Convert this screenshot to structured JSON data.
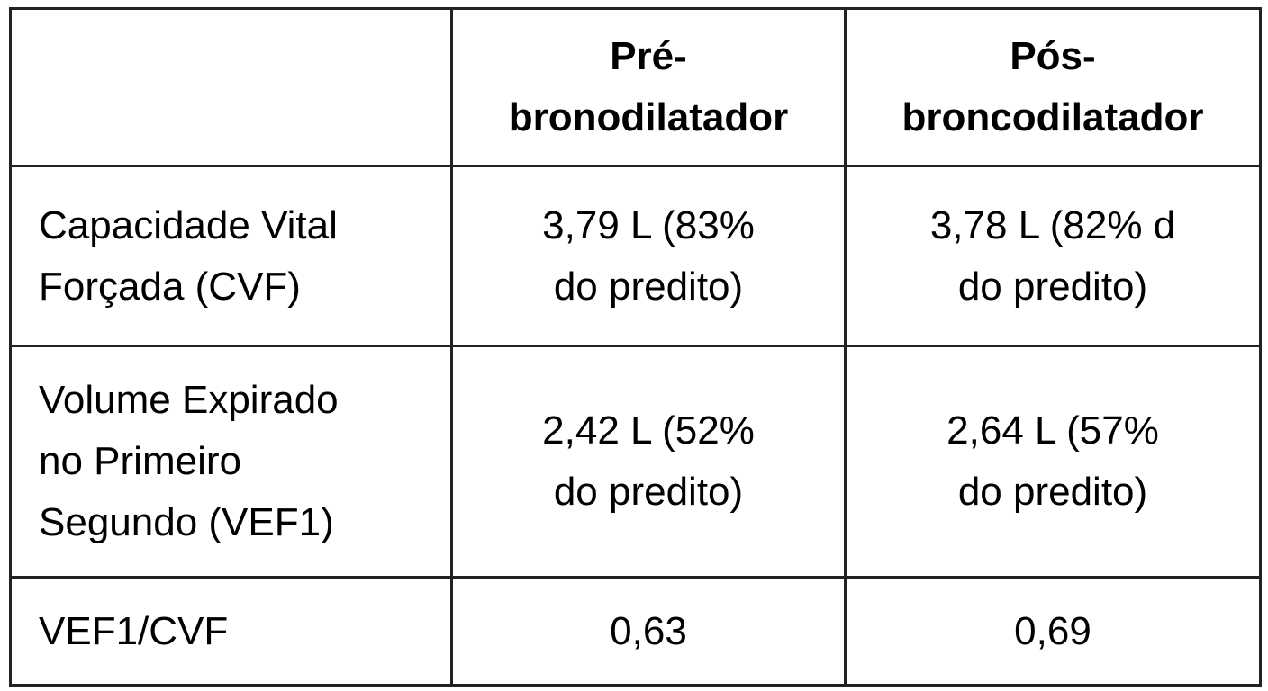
{
  "table": {
    "header": [
      [],
      [
        "Pré-",
        "bronodilatador"
      ],
      [
        "Pós-",
        "broncodilatador"
      ]
    ],
    "rows": [
      [
        [
          "Capacidade Vital",
          "Forçada (CVF)"
        ],
        [
          "3,79 L (83%",
          "do predito)"
        ],
        [
          "3,78 L (82% d",
          "do predito)"
        ]
      ],
      [
        [
          "Volume Expirado",
          "no Primeiro",
          "Segundo (VEF1)"
        ],
        [
          "2,42 L (52%",
          "do predito)"
        ],
        [
          "2,64 L (57%",
          "do predito)"
        ]
      ],
      [
        [
          "VEF1/CVF"
        ],
        [
          "0,63"
        ],
        [
          "0,69"
        ]
      ]
    ]
  }
}
